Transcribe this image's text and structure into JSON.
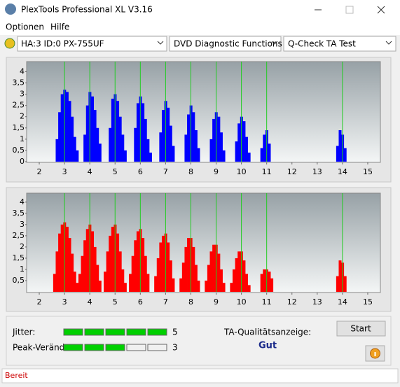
{
  "window": {
    "title": "PlexTools Professional XL V3.16"
  },
  "menu": [
    "Optionen",
    "Hilfe"
  ],
  "toolbar": {
    "drive": "HA:3 ID:0  PX-755UF",
    "function": "DVD Diagnostic Functions",
    "test": "Q-Check TA Test"
  },
  "chart_data": [
    {
      "type": "bar",
      "color": "#0000ff",
      "marker_color": "#22cc22",
      "x": [
        2.7,
        2.8,
        2.9,
        3.0,
        3.1,
        3.2,
        3.3,
        3.4,
        3.5,
        3.8,
        3.9,
        4.0,
        4.1,
        4.2,
        4.3,
        4.4,
        4.8,
        4.9,
        5.0,
        5.1,
        5.2,
        5.3,
        5.4,
        5.8,
        5.9,
        6.0,
        6.1,
        6.2,
        6.3,
        6.4,
        6.8,
        6.9,
        7.0,
        7.1,
        7.2,
        7.3,
        7.8,
        7.9,
        8.0,
        8.1,
        8.2,
        8.3,
        8.8,
        8.9,
        9.0,
        9.1,
        9.2,
        9.3,
        9.8,
        9.9,
        10.0,
        10.1,
        10.2,
        10.3,
        10.8,
        10.9,
        11.0,
        11.1,
        13.8,
        13.9,
        14.0,
        14.1
      ],
      "values": [
        1.0,
        2.2,
        3.0,
        3.2,
        3.1,
        2.7,
        2.0,
        1.1,
        0.5,
        1.2,
        2.5,
        3.1,
        2.9,
        2.3,
        1.5,
        0.8,
        1.5,
        2.8,
        3.0,
        2.7,
        2.0,
        1.2,
        0.5,
        1.5,
        2.6,
        2.9,
        2.6,
        1.9,
        1.0,
        0.4,
        1.3,
        2.3,
        2.7,
        2.4,
        1.6,
        0.7,
        1.2,
        2.1,
        2.5,
        2.2,
        1.4,
        0.6,
        1.0,
        1.9,
        2.2,
        2.0,
        1.3,
        0.5,
        0.9,
        1.7,
        2.0,
        1.8,
        1.1,
        0.4,
        0.6,
        1.2,
        1.4,
        0.8,
        0.7,
        1.4,
        1.2,
        0.6
      ],
      "markers": [
        3,
        4,
        5,
        6,
        7,
        8,
        9,
        10,
        11,
        14
      ],
      "xlim": [
        1.5,
        15.5
      ],
      "xticks": [
        2,
        3,
        4,
        5,
        6,
        7,
        8,
        9,
        10,
        11,
        12,
        13,
        14,
        15
      ],
      "ylim": [
        0,
        4.45
      ],
      "yticks": [
        0,
        {
          "value": 0.5,
          "label": "0,5"
        },
        1,
        {
          "value": 1.5,
          "label": "1,5"
        },
        2,
        {
          "value": 2.5,
          "label": "2,5"
        },
        3,
        {
          "value": 3.5,
          "label": "3,5"
        },
        4
      ]
    },
    {
      "type": "bar",
      "color": "#ff0000",
      "marker_color": "#22cc22",
      "x": [
        2.6,
        2.7,
        2.8,
        2.9,
        3.0,
        3.1,
        3.2,
        3.3,
        3.4,
        3.5,
        3.6,
        3.7,
        3.8,
        3.9,
        4.0,
        4.1,
        4.2,
        4.3,
        4.4,
        4.6,
        4.7,
        4.8,
        4.9,
        5.0,
        5.1,
        5.2,
        5.3,
        5.4,
        5.6,
        5.7,
        5.8,
        5.9,
        6.0,
        6.1,
        6.2,
        6.3,
        6.6,
        6.7,
        6.8,
        6.9,
        7.0,
        7.1,
        7.2,
        7.3,
        7.6,
        7.7,
        7.8,
        7.9,
        8.0,
        8.1,
        8.2,
        8.3,
        8.6,
        8.7,
        8.8,
        8.9,
        9.0,
        9.1,
        9.2,
        9.3,
        9.6,
        9.7,
        9.8,
        9.9,
        10.0,
        10.1,
        10.2,
        10.3,
        10.8,
        10.9,
        11.0,
        11.1,
        11.2,
        13.8,
        13.9,
        14.0,
        14.1
      ],
      "values": [
        0.8,
        1.8,
        2.6,
        3.0,
        3.1,
        2.9,
        2.4,
        1.7,
        0.9,
        0.4,
        0.8,
        1.6,
        2.3,
        2.8,
        3.0,
        2.7,
        2.0,
        1.2,
        0.5,
        0.9,
        1.8,
        2.5,
        2.9,
        3.0,
        2.6,
        1.8,
        1.0,
        0.4,
        0.8,
        1.6,
        2.3,
        2.7,
        2.8,
        2.4,
        1.6,
        0.8,
        0.7,
        1.5,
        2.2,
        2.5,
        2.6,
        2.2,
        1.4,
        0.6,
        0.6,
        1.3,
        2.0,
        2.4,
        2.4,
        2.0,
        1.2,
        0.5,
        0.5,
        1.2,
        1.8,
        2.1,
        2.1,
        1.7,
        1.0,
        0.4,
        0.4,
        1.0,
        1.5,
        1.8,
        1.8,
        1.4,
        0.8,
        0.3,
        0.8,
        1.0,
        1.0,
        0.9,
        0.6,
        0.7,
        1.4,
        1.3,
        0.7
      ],
      "markers": [
        3,
        4,
        5,
        6,
        7,
        8,
        9,
        10,
        11,
        14
      ],
      "xlim": [
        1.5,
        15.5
      ],
      "xticks": [
        2,
        3,
        4,
        5,
        6,
        7,
        8,
        9,
        10,
        11,
        12,
        13,
        14,
        15
      ],
      "ylim": [
        0,
        4.4
      ],
      "yticks": [
        {
          "value": 0.5,
          "label": "0,5"
        },
        1,
        {
          "value": 1.5,
          "label": "1,5"
        },
        2,
        {
          "value": 2.5,
          "label": "2,5"
        },
        3,
        {
          "value": 3.5,
          "label": "3,5"
        },
        4
      ]
    }
  ],
  "results": {
    "jitter_label": "Jitter:",
    "jitter": 5,
    "peak_label": "Peak-Veränd",
    "peak": 3,
    "quality_label": "TA-Qualitätsanzeige:",
    "quality": "Gut",
    "start": "Start"
  },
  "status": "Bereit"
}
